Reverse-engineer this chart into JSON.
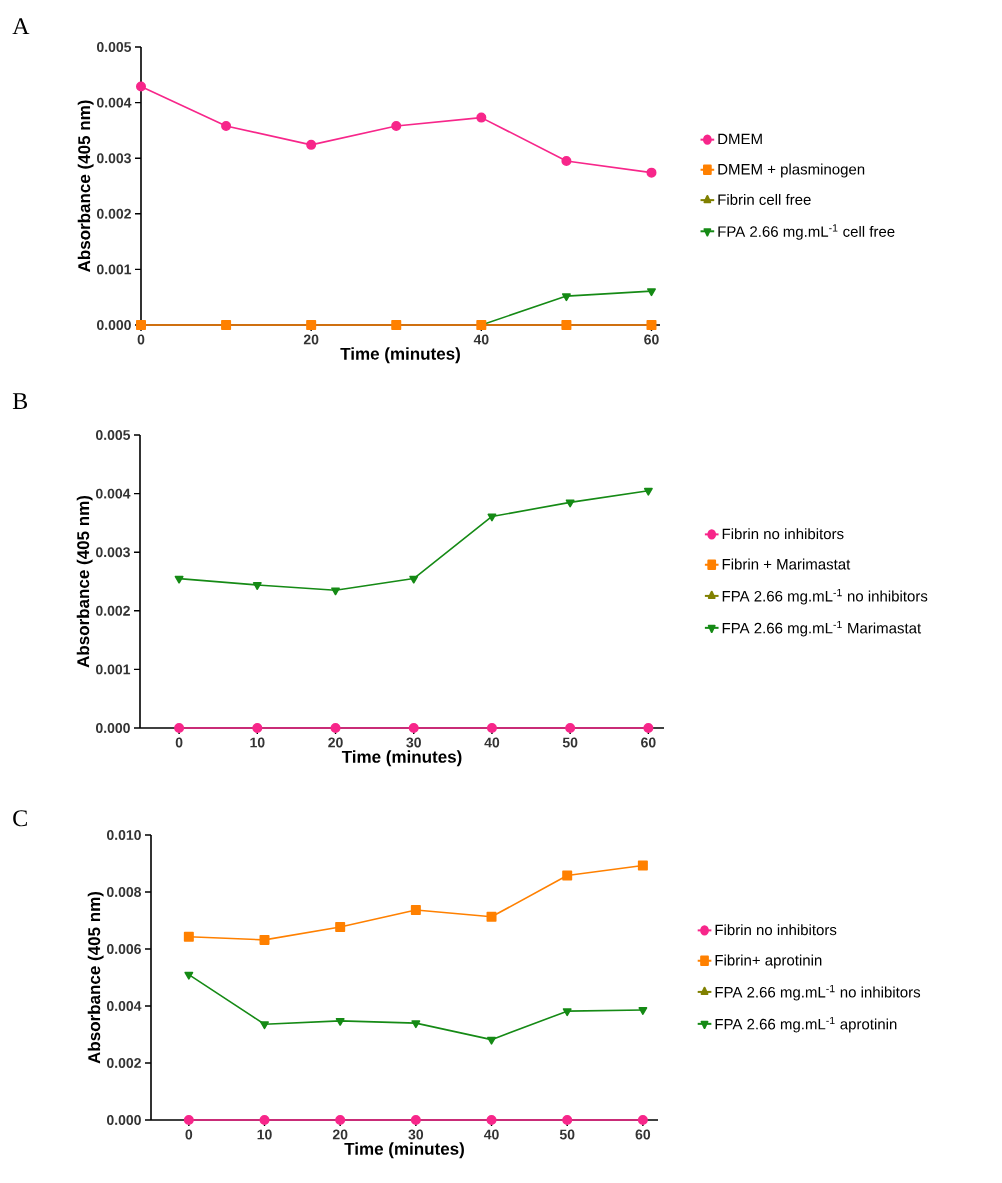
{
  "chart_data": [
    {
      "type": "line",
      "title": "A",
      "xlabel": "Time (minutes)",
      "ylabel": "Absorbance (405 nm)",
      "x": [
        0,
        10,
        20,
        30,
        40,
        50,
        60
      ],
      "xlim": [
        0,
        61
      ],
      "xticks": [
        0,
        20,
        40,
        60
      ],
      "ylim": [
        0,
        0.005
      ],
      "yticks": [
        {
          "value": 0,
          "label": "0.000"
        },
        {
          "value": 0.001,
          "label": "0.001"
        },
        {
          "value": 0.002,
          "label": "0.002"
        },
        {
          "value": 0.003,
          "label": "0.003"
        },
        {
          "value": 0.004,
          "label": "0.004"
        },
        {
          "value": 0.005,
          "label": "0.005"
        }
      ],
      "legend": "right",
      "series": [
        {
          "name": "DMEM",
          "color": "#f7268a",
          "marker": "circle",
          "values": [
            0.00429,
            0.00358,
            0.00324,
            0.00358,
            0.00373,
            0.00295,
            0.00274
          ]
        },
        {
          "name": "DMEM + plasminogen",
          "color": "#ff8000",
          "marker": "square",
          "values": [
            0,
            0,
            0,
            0,
            0,
            0,
            0
          ]
        },
        {
          "name": "Fibrin cell free",
          "color": "#808000",
          "marker": "triangle",
          "values": [
            null,
            null,
            null,
            null,
            null,
            null,
            null
          ]
        },
        {
          "name": "FPA 2.66 mg.mL$^{-1}$ cell free",
          "color": "#158a15",
          "marker": "triangle-down",
          "values": [
            null,
            null,
            null,
            null,
            0,
            0.00052,
            0.00061
          ]
        }
      ]
    },
    {
      "type": "line",
      "title": "B",
      "xlabel": "Time (minutes)",
      "ylabel": "Absorbance (405 nm)",
      "x": [
        0,
        10,
        20,
        30,
        40,
        50,
        60
      ],
      "xlim": [
        -5,
        62
      ],
      "xticks": [
        0,
        10,
        20,
        30,
        40,
        50,
        60
      ],
      "ylim": [
        0,
        0.005
      ],
      "yticks": [
        {
          "value": 0,
          "label": "0.000"
        },
        {
          "value": 0.001,
          "label": "0.001"
        },
        {
          "value": 0.002,
          "label": "0.002"
        },
        {
          "value": 0.003,
          "label": "0.003"
        },
        {
          "value": 0.004,
          "label": "0.004"
        },
        {
          "value": 0.005,
          "label": "0.005"
        }
      ],
      "legend": "right",
      "series": [
        {
          "name": "Fibrin no inhibitors",
          "color": "#f7268a",
          "marker": "circle",
          "values": [
            0,
            0,
            0,
            0,
            0,
            0,
            0
          ]
        },
        {
          "name": "Fibrin + Marimastat",
          "color": "#ff8000",
          "marker": "square",
          "values": [
            null,
            null,
            null,
            null,
            null,
            null,
            null
          ]
        },
        {
          "name": "FPA 2.66 mg.mL$^{-1}$ no inhibitors",
          "color": "#808000",
          "marker": "triangle",
          "values": [
            null,
            null,
            null,
            null,
            null,
            null,
            null
          ]
        },
        {
          "name": "FPA 2.66 mg.mL$^{-1}$ Marimastat",
          "color": "#158a15",
          "marker": "triangle-down",
          "values": [
            0.00255,
            0.00244,
            0.00235,
            0.00255,
            0.00361,
            0.00385,
            0.00405
          ]
        }
      ]
    },
    {
      "type": "line",
      "title": "C",
      "xlabel": "Time (minutes)",
      "ylabel": "Absorbance (405 nm)",
      "x": [
        0,
        10,
        20,
        30,
        40,
        50,
        60
      ],
      "xlim": [
        -5,
        62
      ],
      "xticks": [
        0,
        10,
        20,
        30,
        40,
        50,
        60
      ],
      "ylim": [
        0,
        0.01
      ],
      "yticks": [
        {
          "value": 0,
          "label": "0.000"
        },
        {
          "value": 0.002,
          "label": "0.002"
        },
        {
          "value": 0.004,
          "label": "0.004"
        },
        {
          "value": 0.006,
          "label": "0.006"
        },
        {
          "value": 0.008,
          "label": "0.008"
        },
        {
          "value": 0.01,
          "label": "0.010"
        }
      ],
      "legend": "right",
      "series": [
        {
          "name": "Fibrin no inhibitors",
          "color": "#f7268a",
          "marker": "circle",
          "values": [
            0,
            0,
            0,
            0,
            0,
            0,
            0
          ]
        },
        {
          "name": "Fibrin+ aprotinin",
          "color": "#ff8000",
          "marker": "square",
          "values": [
            0.00643,
            0.00632,
            0.00677,
            0.00737,
            0.00713,
            0.00858,
            0.00893
          ]
        },
        {
          "name": "FPA 2.66 mg.mL$^{-1}$ no inhibitors",
          "color": "#808000",
          "marker": "triangle",
          "values": [
            null,
            null,
            null,
            null,
            null,
            null,
            null
          ]
        },
        {
          "name": "FPA 2.66 mg.mL$^{-1}$ aprotinin",
          "color": "#158a15",
          "marker": "triangle-down",
          "values": [
            0.0051,
            0.00336,
            0.00348,
            0.0034,
            0.00282,
            0.00382,
            0.00386
          ]
        }
      ]
    }
  ]
}
